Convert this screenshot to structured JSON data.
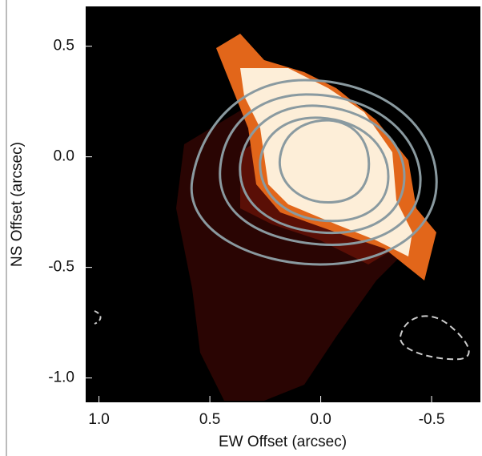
{
  "chart_data": {
    "type": "image",
    "xlabel": "EW Offset (arcsec)",
    "ylabel": "NS Offset (arcsec)",
    "xlim": [
      1.06,
      -0.72
    ],
    "ylim": [
      -1.11,
      0.68
    ],
    "xticks": [
      {
        "value": 1,
        "label": "1.0"
      },
      0.5,
      {
        "value": 0,
        "label": "0.0"
      },
      -0.5
    ],
    "yticks": [
      0.5,
      {
        "value": 0,
        "label": "0.0"
      },
      -0.5,
      {
        "value": -1,
        "label": "-1.0"
      }
    ]
  }
}
